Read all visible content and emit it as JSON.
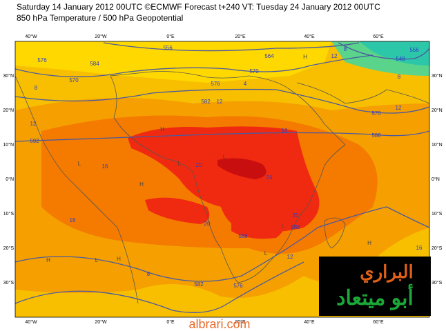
{
  "header": {
    "line1": "Saturday 14 January 2012 00UTC ©ECMWF Forecast t+240 VT: Tuesday 24 January 2012 00UTC",
    "line2": "850 hPa Temperature / 500 hPa Geopotential"
  },
  "map": {
    "lon_labels": [
      "40°W",
      "20°W",
      "0°E",
      "20°E",
      "40°E",
      "60°E"
    ],
    "lat_labels": [
      "30°N",
      "20°N",
      "10°N",
      "0°N",
      "10°S",
      "20°S",
      "30°S"
    ],
    "geopotential_labels": [
      556,
      564,
      570,
      576,
      582,
      584,
      576,
      570,
      592,
      588,
      588,
      582,
      576,
      570,
      588,
      548,
      556
    ],
    "temperature_labels": [
      8,
      12,
      16,
      16,
      20,
      24,
      20,
      20,
      16,
      12,
      8,
      12,
      16,
      12,
      4,
      8,
      8,
      12
    ],
    "pressure_centres": [
      "H",
      "H",
      "H",
      "H",
      "L",
      "L",
      "L",
      "L",
      "H",
      "L",
      "H",
      "L"
    ]
  },
  "logo": {
    "line1": "البراري",
    "line2": "أبو ميتعاد"
  },
  "watermark": "albrari.com"
}
